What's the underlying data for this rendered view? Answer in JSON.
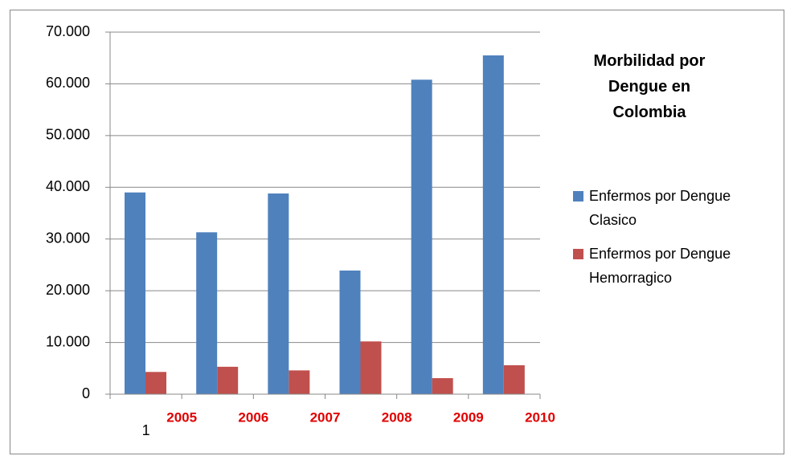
{
  "chart_data": {
    "type": "bar",
    "title": "Morbilidad por Dengue en Colombia",
    "categories": [
      "1",
      null,
      null,
      null,
      null,
      null
    ],
    "annotations": [
      "2005",
      "2006",
      "2007",
      "2008",
      "2009",
      "2010"
    ],
    "annotation_color": "#e00000",
    "series": [
      {
        "name": "Enfermos por Dengue Clasico",
        "color": "#4f81bd",
        "values": [
          39000,
          31300,
          38800,
          23900,
          60800,
          65500
        ]
      },
      {
        "name": "Enfermos por Dengue Hemorragico",
        "color": "#c0504d",
        "values": [
          4300,
          5300,
          4600,
          10200,
          3100,
          5600
        ]
      }
    ],
    "ylim": [
      0,
      70000
    ],
    "yticks": [
      0,
      {
        "value": 10000,
        "label": "10.000"
      },
      {
        "value": 20000,
        "label": "20.000"
      },
      {
        "value": 30000,
        "label": "30.000"
      },
      {
        "value": 40000,
        "label": "40.000"
      },
      {
        "value": 50000,
        "label": "50.000"
      },
      {
        "value": 60000,
        "label": "60.000"
      },
      {
        "value": 70000,
        "label": "70.000"
      }
    ],
    "grid": true,
    "legend": "right"
  }
}
